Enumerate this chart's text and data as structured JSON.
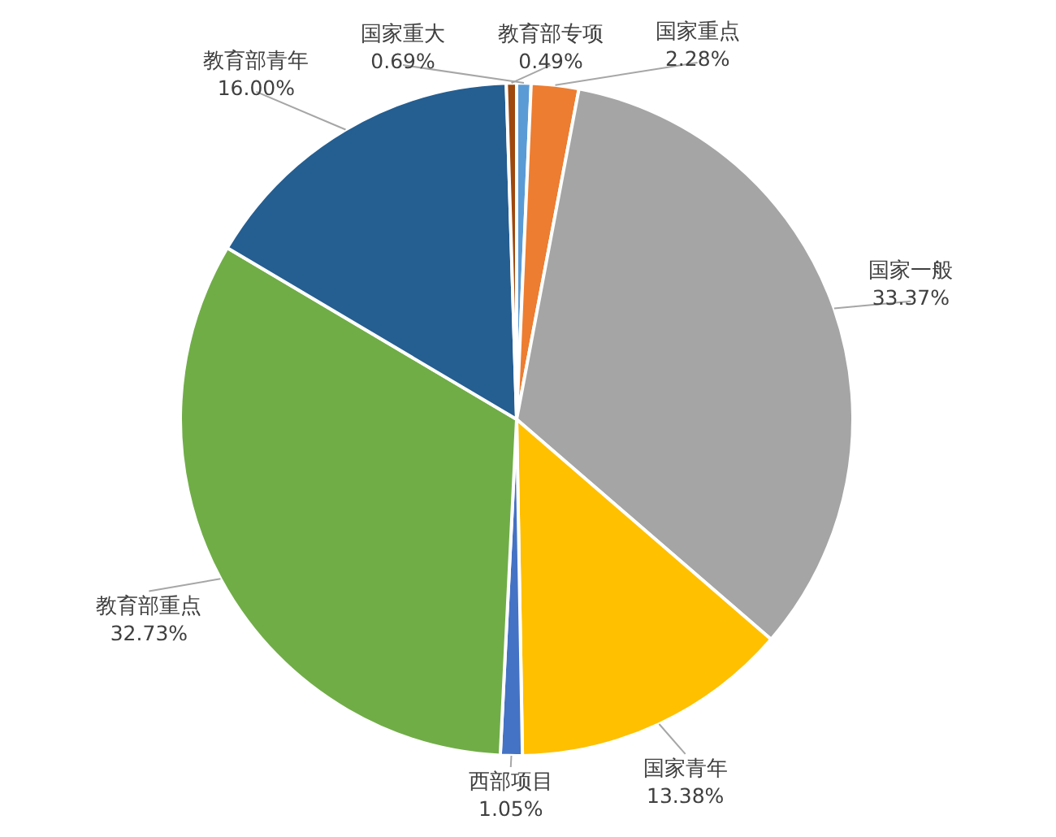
{
  "chart_data": {
    "type": "pie",
    "categories": [
      "国家重大",
      "国家重点",
      "国家一般",
      "国家青年",
      "西部项目",
      "教育部重点",
      "教育部青年",
      "教育部专项"
    ],
    "values": [
      0.69,
      2.28,
      33.37,
      13.38,
      1.05,
      32.73,
      16.0,
      0.49
    ],
    "value_labels": [
      "0.69%",
      "2.28%",
      "33.37%",
      "13.38%",
      "1.05%",
      "32.73%",
      "16.00%",
      "0.49%"
    ],
    "colors": [
      "#5b9bd5",
      "#ed7d31",
      "#a5a5a5",
      "#ffc000",
      "#4472c4",
      "#70ad47",
      "#255e91",
      "#9e480e"
    ],
    "legend": false
  }
}
